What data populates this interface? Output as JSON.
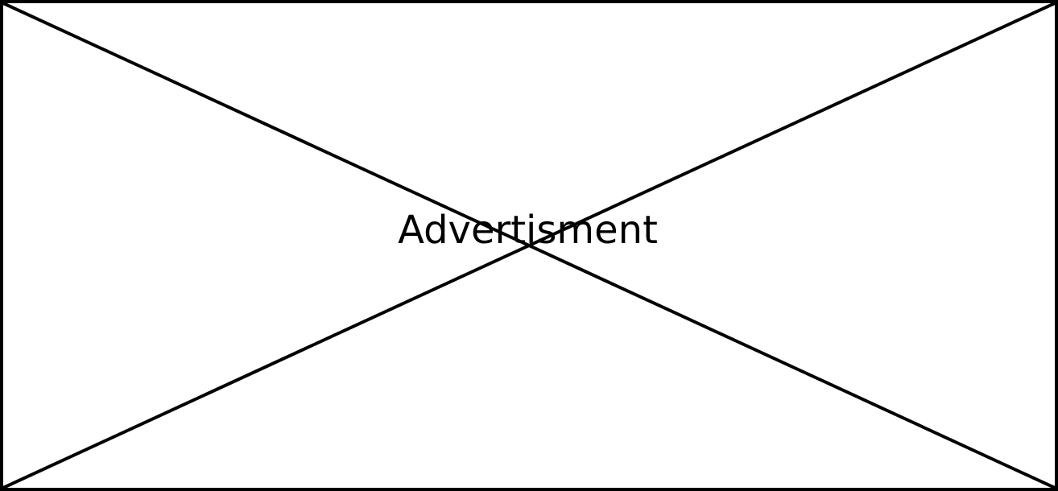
{
  "advertisement": {
    "label": "Advertisment",
    "placeholder_icon": "cross-out-icon",
    "colors": {
      "border": "#000000",
      "background": "#ffffff",
      "text": "#000000"
    }
  }
}
